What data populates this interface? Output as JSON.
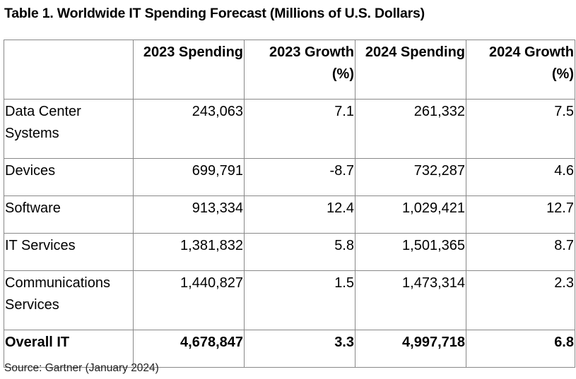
{
  "title": "Table 1. Worldwide IT Spending Forecast (Millions of U.S. Dollars)",
  "table": {
    "headers": [
      "",
      "2023 Spending",
      "2023 Growth (%)",
      "2024 Spending",
      "2024 Growth (%)"
    ],
    "rows": [
      [
        "Data Center Systems",
        "243,063",
        "7.1",
        "261,332",
        "7.5"
      ],
      [
        "Devices",
        "699,791",
        "-8.7",
        "732,287",
        "4.6"
      ],
      [
        "Software",
        "913,334",
        "12.4",
        "1,029,421",
        "12.7"
      ],
      [
        "IT Services",
        "1,381,832",
        "5.8",
        "1,501,365",
        "8.7"
      ],
      [
        "Communications Services",
        "1,440,827",
        "1.5",
        "1,473,314",
        "2.3"
      ],
      [
        "Overall IT",
        "4,678,847",
        "3.3",
        "4,997,718",
        "6.8"
      ]
    ]
  },
  "source": "Source: Gartner (January 2024)"
}
